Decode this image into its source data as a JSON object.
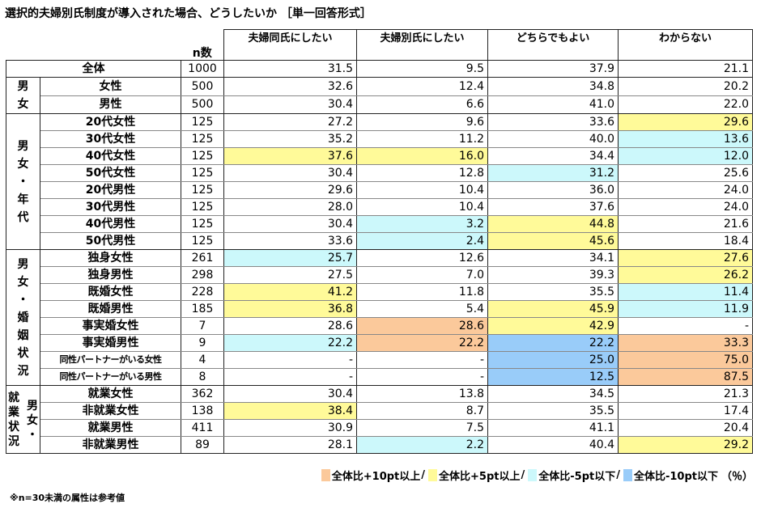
{
  "title": "選択的夫婦別氏制度が導入された場合、どうしたいか ［単一回答形式］",
  "header": {
    "n_label": "n数",
    "columns": [
      "夫婦同氏にしたい",
      "夫婦別氏にしたい",
      "どちらでもよい",
      "わからない"
    ]
  },
  "total": {
    "label": "全体",
    "n": "1000",
    "values": [
      "31.5",
      "9.5",
      "37.9",
      "21.1"
    ]
  },
  "groups": [
    {
      "name": "男女",
      "rows": [
        {
          "label": "女性",
          "n": "500",
          "values": [
            "32.6",
            "12.4",
            "34.8",
            "20.2"
          ],
          "hl": [
            "",
            "",
            "",
            ""
          ]
        },
        {
          "label": "男性",
          "n": "500",
          "values": [
            "30.4",
            "6.6",
            "41.0",
            "22.0"
          ],
          "hl": [
            "",
            "",
            "",
            ""
          ]
        }
      ]
    },
    {
      "name": "男女・年代",
      "rows": [
        {
          "label": "20代女性",
          "n": "125",
          "values": [
            "27.2",
            "9.6",
            "33.6",
            "29.6"
          ],
          "hl": [
            "",
            "",
            "",
            "y"
          ]
        },
        {
          "label": "30代女性",
          "n": "125",
          "values": [
            "35.2",
            "11.2",
            "40.0",
            "13.6"
          ],
          "hl": [
            "",
            "",
            "",
            "c"
          ]
        },
        {
          "label": "40代女性",
          "n": "125",
          "values": [
            "37.6",
            "16.0",
            "34.4",
            "12.0"
          ],
          "hl": [
            "y",
            "y",
            "",
            "c"
          ]
        },
        {
          "label": "50代女性",
          "n": "125",
          "values": [
            "30.4",
            "12.8",
            "31.2",
            "25.6"
          ],
          "hl": [
            "",
            "",
            "c",
            ""
          ]
        },
        {
          "label": "20代男性",
          "n": "125",
          "values": [
            "29.6",
            "10.4",
            "36.0",
            "24.0"
          ],
          "hl": [
            "",
            "",
            "",
            ""
          ]
        },
        {
          "label": "30代男性",
          "n": "125",
          "values": [
            "28.0",
            "10.4",
            "37.6",
            "24.0"
          ],
          "hl": [
            "",
            "",
            "",
            ""
          ]
        },
        {
          "label": "40代男性",
          "n": "125",
          "values": [
            "30.4",
            "3.2",
            "44.8",
            "21.6"
          ],
          "hl": [
            "",
            "c",
            "y",
            ""
          ]
        },
        {
          "label": "50代男性",
          "n": "125",
          "values": [
            "33.6",
            "2.4",
            "45.6",
            "18.4"
          ],
          "hl": [
            "",
            "c",
            "y",
            ""
          ]
        }
      ]
    },
    {
      "name": "男女・婚姻状況",
      "rows": [
        {
          "label": "独身女性",
          "n": "261",
          "values": [
            "25.7",
            "12.6",
            "34.1",
            "27.6"
          ],
          "hl": [
            "c",
            "",
            "",
            "y"
          ]
        },
        {
          "label": "独身男性",
          "n": "298",
          "values": [
            "27.5",
            "7.0",
            "39.3",
            "26.2"
          ],
          "hl": [
            "",
            "",
            "",
            "y"
          ]
        },
        {
          "label": "既婚女性",
          "n": "228",
          "values": [
            "41.2",
            "11.8",
            "35.5",
            "11.4"
          ],
          "hl": [
            "y",
            "",
            "",
            "c"
          ]
        },
        {
          "label": "既婚男性",
          "n": "185",
          "values": [
            "36.8",
            "5.4",
            "45.9",
            "11.9"
          ],
          "hl": [
            "y",
            "",
            "y",
            "c"
          ]
        },
        {
          "label": "事実婚女性",
          "n": "7",
          "values": [
            "28.6",
            "28.6",
            "42.9",
            "-"
          ],
          "hl": [
            "",
            "o",
            "y",
            ""
          ]
        },
        {
          "label": "事実婚男性",
          "n": "9",
          "values": [
            "22.2",
            "22.2",
            "22.2",
            "33.3"
          ],
          "hl": [
            "c",
            "o",
            "b",
            "o"
          ]
        },
        {
          "label": "同性パートナーがいる女性",
          "n": "4",
          "values": [
            "-",
            "-",
            "25.0",
            "75.0"
          ],
          "hl": [
            "",
            "",
            "b",
            "o"
          ],
          "small": true
        },
        {
          "label": "同性パートナーがいる男性",
          "n": "8",
          "values": [
            "-",
            "-",
            "12.5",
            "87.5"
          ],
          "hl": [
            "",
            "",
            "b",
            "o"
          ],
          "small": true
        }
      ]
    },
    {
      "name": "男女・就業状況",
      "name_col_a": "就業状況",
      "name_col_b": "男女・",
      "rows": [
        {
          "label": "就業女性",
          "n": "362",
          "values": [
            "30.4",
            "13.8",
            "34.5",
            "21.3"
          ],
          "hl": [
            "",
            "",
            "",
            ""
          ]
        },
        {
          "label": "非就業女性",
          "n": "138",
          "values": [
            "38.4",
            "8.7",
            "35.5",
            "17.4"
          ],
          "hl": [
            "y",
            "",
            "",
            ""
          ]
        },
        {
          "label": "就業男性",
          "n": "411",
          "values": [
            "30.9",
            "7.5",
            "41.1",
            "20.4"
          ],
          "hl": [
            "",
            "",
            "",
            ""
          ]
        },
        {
          "label": "非就業男性",
          "n": "89",
          "values": [
            "28.1",
            "2.2",
            "40.4",
            "29.2"
          ],
          "hl": [
            "",
            "c",
            "",
            "y"
          ]
        }
      ]
    }
  ],
  "legend": {
    "items": [
      {
        "label": "全体比+10pt以上",
        "color": "#fbc99b"
      },
      {
        "label": "全体比+5pt以上",
        "color": "#fffa99"
      },
      {
        "label": "全体比-5pt以下",
        "color": "#ccf8fb"
      },
      {
        "label": "全体比-10pt以下",
        "color": "#99ccf9"
      }
    ],
    "separator": "/",
    "unit": "（％）"
  },
  "footnote": "※n=30未満の属性は参考値"
}
